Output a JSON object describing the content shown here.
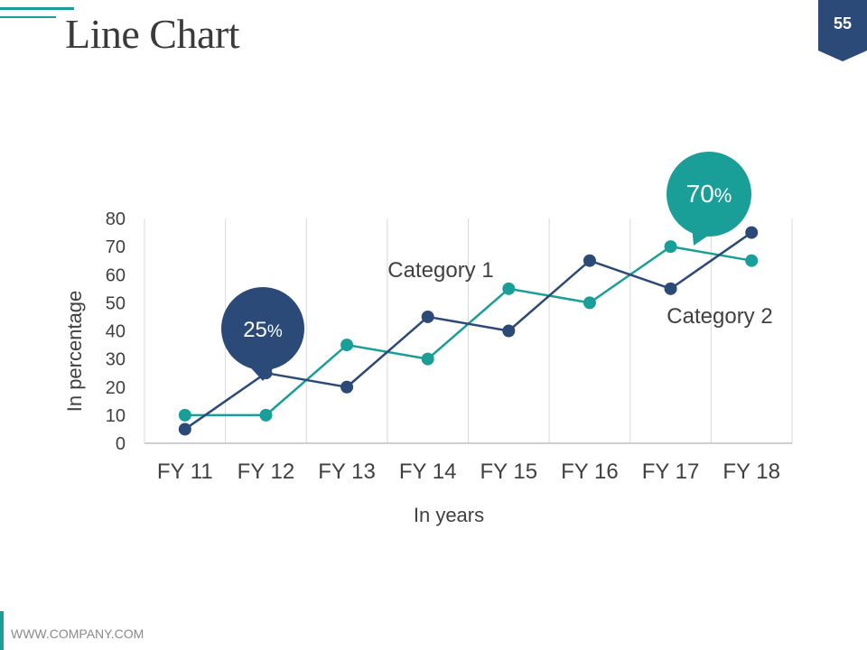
{
  "header": {
    "title": "Line Chart",
    "page_number": "55"
  },
  "footer": {
    "url": "WWW.COMPANY.COM"
  },
  "colors": {
    "teal": "#1a9e98",
    "navy": "#2c4a78",
    "grid": "#d9d9d9"
  },
  "chart_data": {
    "type": "line",
    "title": "Line Chart",
    "xlabel": "In years",
    "ylabel": "In percentage",
    "categories": [
      "FY 11",
      "FY 12",
      "FY 13",
      "FY 14",
      "FY 15",
      "FY 16",
      "FY 17",
      "FY 18"
    ],
    "yticks": [
      "0",
      "10",
      "20",
      "30",
      "40",
      "50",
      "60",
      "70",
      "80"
    ],
    "ylim": [
      0,
      80
    ],
    "grid": "vertical",
    "series": [
      {
        "name": "Category 1",
        "color": "#2c4a78",
        "values": [
          5,
          25,
          20,
          45,
          40,
          65,
          55,
          75
        ]
      },
      {
        "name": "Category 2",
        "color": "#1a9e98",
        "values": [
          10,
          10,
          35,
          30,
          55,
          50,
          70,
          65
        ]
      }
    ],
    "series_labels": [
      "Category 1",
      "Category 2"
    ],
    "callouts": [
      {
        "number": "25",
        "suffix": "%",
        "color": "#2c4a78"
      },
      {
        "number": "70",
        "suffix": "%",
        "color": "#1a9e98"
      }
    ]
  }
}
